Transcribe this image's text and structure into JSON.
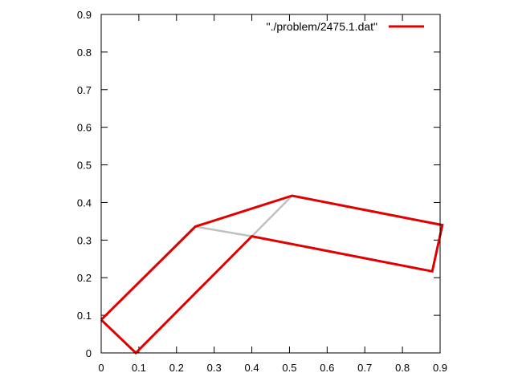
{
  "chart_data": {
    "type": "line",
    "title": "",
    "xlabel": "",
    "ylabel": "",
    "xlim": [
      0,
      0.9
    ],
    "ylim": [
      0,
      0.9
    ],
    "x_ticks": [
      "0",
      "0.1",
      "0.2",
      "0.3",
      "0.4",
      "0.5",
      "0.6",
      "0.7",
      "0.8",
      "0.9"
    ],
    "y_ticks": [
      "0",
      "0.1",
      "0.2",
      "0.3",
      "0.4",
      "0.5",
      "0.6",
      "0.7",
      "0.8",
      "0.9"
    ],
    "grid": false,
    "legend_position": "top-right",
    "series": [
      {
        "name": "\"./problem/2475.1.dat\"",
        "color": "#e00000",
        "points": [
          [
            0,
            0.088
          ],
          [
            0.092,
            0
          ],
          [
            0.4,
            0.31
          ],
          [
            0.879,
            0.217
          ],
          [
            0.906,
            0.34
          ],
          [
            0.507,
            0.418
          ],
          [
            0.25,
            0.336
          ],
          [
            0,
            0.088
          ]
        ]
      },
      {
        "name": "",
        "color": "#c0c0c0",
        "points": [
          [
            0.25,
            0.336
          ],
          [
            0.4,
            0.31
          ],
          [
            0.507,
            0.418
          ]
        ]
      }
    ]
  }
}
